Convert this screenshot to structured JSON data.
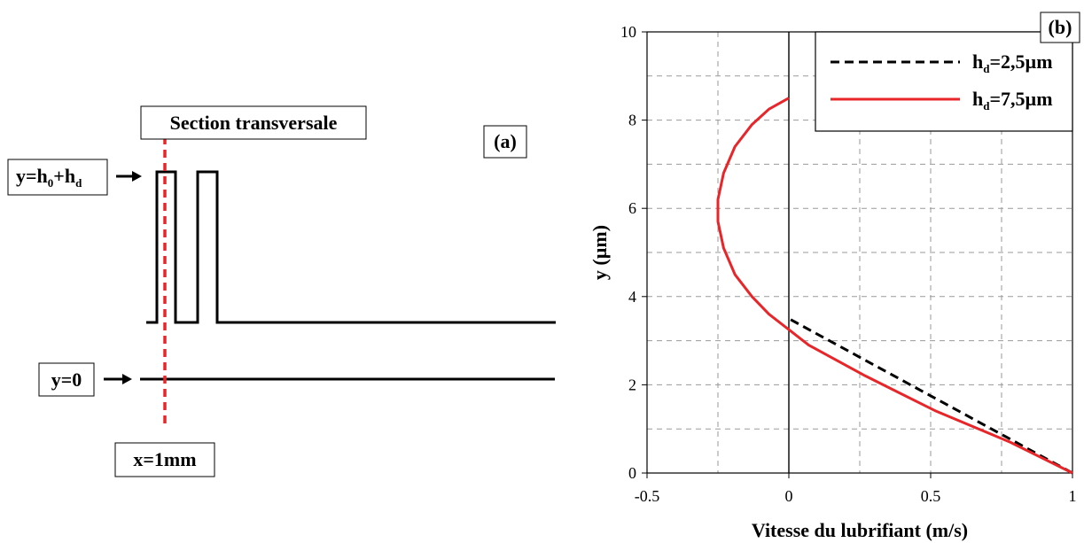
{
  "panel_a": {
    "tag": "(a)",
    "section_label": "Section transversale",
    "top_label": {
      "lhs": "y=h",
      "sub0": "0",
      "plus": "+h",
      "subd": "d"
    },
    "bottom_label": "y=0",
    "x_label": "x=1mm",
    "colors": {
      "section_line": "#e8262a",
      "lines": "#000000"
    }
  },
  "panel_b": {
    "tag": "(b)",
    "legend": [
      {
        "prefix": "h",
        "sub": "d",
        "text": "=2,5µm",
        "color": "#000000",
        "style": "dashed"
      },
      {
        "prefix": "h",
        "sub": "d",
        "text": "=7,5µm",
        "color": "#e8262a",
        "style": "solid"
      }
    ]
  },
  "chart_data": {
    "type": "line",
    "title": "",
    "xlabel": "Vitesse du lubrifiant (m/s)",
    "ylabel": "y (µm)",
    "xlim": [
      -0.5,
      1
    ],
    "ylim": [
      0,
      10
    ],
    "xticks": [
      "-0.5",
      "0",
      "0.5",
      "1"
    ],
    "yticks": [
      "0",
      "2",
      "4",
      "6",
      "8",
      "10"
    ],
    "grid": true,
    "legend_position": "top-right",
    "series": [
      {
        "name": "hd=2,5µm",
        "color": "#000000",
        "style": "dashed",
        "x": [
          1.0,
          0.0
        ],
        "y": [
          0.0,
          3.5
        ]
      },
      {
        "name": "hd=7,5µm",
        "color": "#e8262a",
        "style": "solid",
        "x": [
          1.0,
          0.78,
          0.52,
          0.27,
          0.07,
          0.0,
          -0.07,
          -0.13,
          -0.19,
          -0.23,
          -0.25,
          -0.25,
          -0.23,
          -0.19,
          -0.13,
          -0.07,
          0.0
        ],
        "y": [
          0.0,
          0.7,
          1.4,
          2.2,
          2.9,
          3.25,
          3.6,
          4.0,
          4.5,
          5.1,
          5.7,
          6.2,
          6.8,
          7.4,
          7.9,
          8.25,
          8.5
        ]
      }
    ]
  }
}
